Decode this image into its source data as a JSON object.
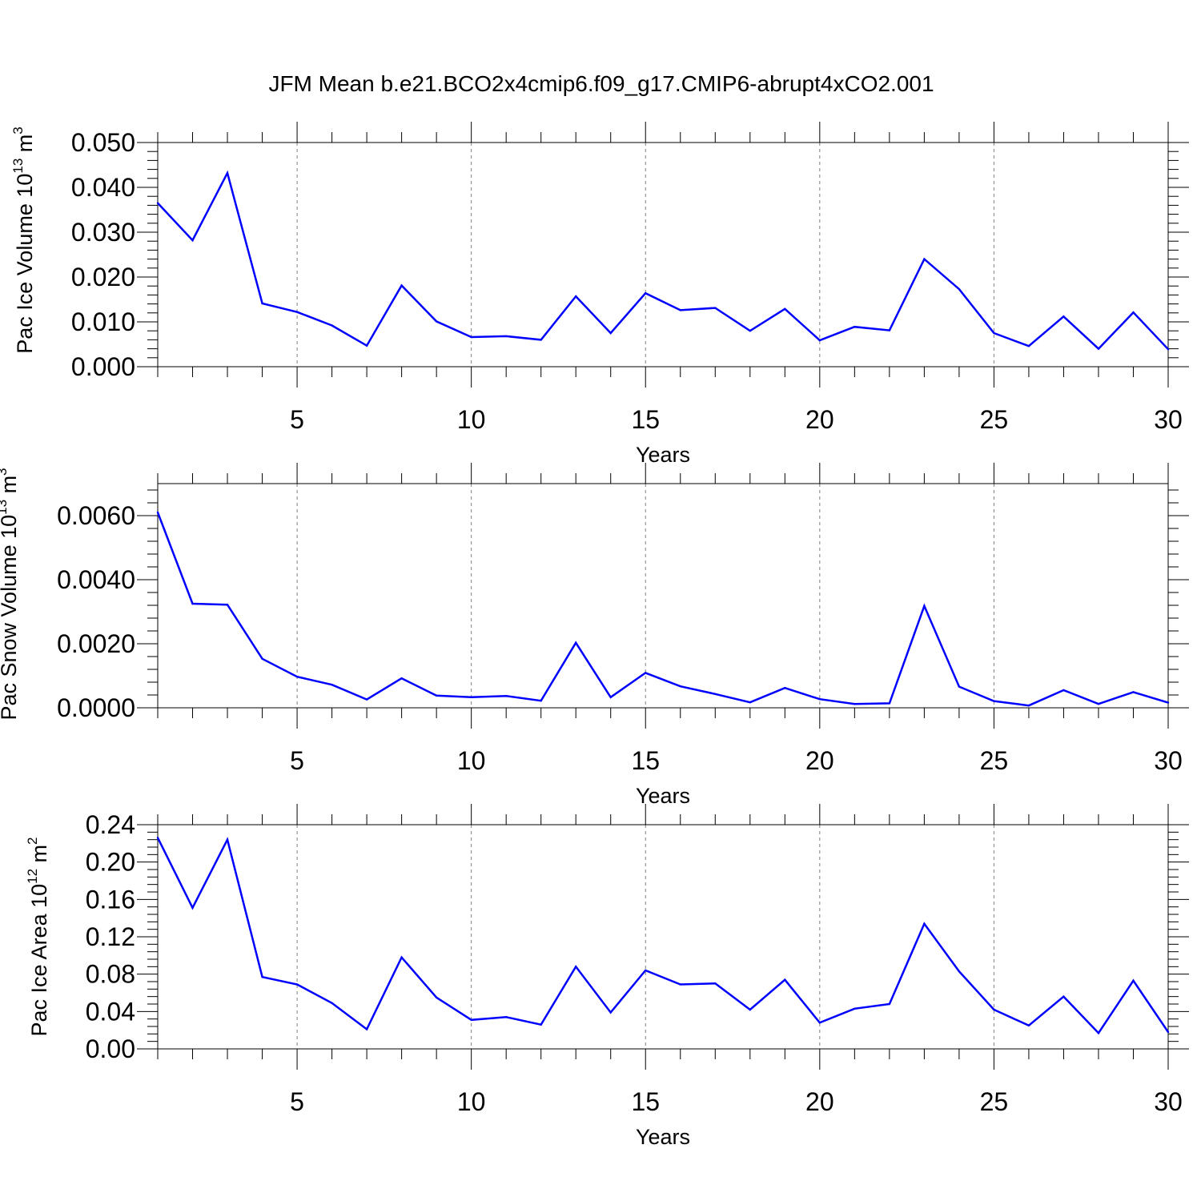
{
  "title": "JFM Mean b.e21.BCO2x4cmip6.f09_g17.CMIP6-abrupt4xCO2.001",
  "colors": {
    "series": "#0000ff",
    "axis": "#000000",
    "grid": "#7f7f7f"
  },
  "chart_data": [
    {
      "type": "line",
      "title": "JFM Mean b.e21.BCO2x4cmip6.f09_g17.CMIP6-abrupt4xCO2.001",
      "xlabel": "Years",
      "ylabel_main": "Pac Ice Volume 10",
      "ylabel_exp": "13",
      "ylabel_unit": " m",
      "ylabel_unit_exp": "3",
      "xlim": [
        1,
        30
      ],
      "ylim": [
        0,
        0.05
      ],
      "yticks": [
        0,
        0.01,
        0.02,
        0.03,
        0.04,
        0.05
      ],
      "ytick_labels": [
        "0.000",
        "0.010",
        "0.020",
        "0.030",
        "0.040",
        "0.050"
      ],
      "xticks": [
        5,
        10,
        15,
        20,
        25,
        30
      ],
      "xtick_labels": [
        "5",
        "10",
        "15",
        "20",
        "25",
        "30"
      ],
      "grid": true,
      "x": [
        1,
        2,
        3,
        4,
        5,
        6,
        7,
        8,
        9,
        10,
        11,
        12,
        13,
        14,
        15,
        16,
        17,
        18,
        19,
        20,
        21,
        22,
        23,
        24,
        25,
        26,
        27,
        28,
        29,
        30
      ],
      "values": [
        0.0365,
        0.0282,
        0.0432,
        0.0141,
        0.0122,
        0.0092,
        0.0047,
        0.0181,
        0.0101,
        0.0066,
        0.0068,
        0.006,
        0.0157,
        0.0075,
        0.0164,
        0.0126,
        0.0131,
        0.008,
        0.0129,
        0.0059,
        0.0089,
        0.0081,
        0.024,
        0.0173,
        0.0075,
        0.0046,
        0.0112,
        0.004,
        0.0121,
        0.0039
      ]
    },
    {
      "type": "line",
      "xlabel": "Years",
      "ylabel_main": "Pac Snow Volume 10",
      "ylabel_exp": "13",
      "ylabel_unit": " m",
      "ylabel_unit_exp": "3",
      "xlim": [
        1,
        30
      ],
      "ylim": [
        0,
        0.007
      ],
      "yticks": [
        0,
        0.002,
        0.004,
        0.006
      ],
      "ytick_labels": [
        "0.0000",
        "0.0020",
        "0.0040",
        "0.0060"
      ],
      "xticks": [
        5,
        10,
        15,
        20,
        25,
        30
      ],
      "xtick_labels": [
        "5",
        "10",
        "15",
        "20",
        "25",
        "30"
      ],
      "grid": true,
      "x": [
        1,
        2,
        3,
        4,
        5,
        6,
        7,
        8,
        9,
        10,
        11,
        12,
        13,
        14,
        15,
        16,
        17,
        18,
        19,
        20,
        21,
        22,
        23,
        24,
        25,
        26,
        27,
        28,
        29,
        30
      ],
      "values": [
        0.0061,
        0.00325,
        0.00322,
        0.00153,
        0.00097,
        0.00072,
        0.00026,
        0.00092,
        0.00038,
        0.00033,
        0.00037,
        0.00022,
        0.00203,
        0.00033,
        0.00109,
        0.00067,
        0.00043,
        0.00017,
        0.00062,
        0.00027,
        0.00012,
        0.00014,
        0.00318,
        0.00066,
        0.00021,
        7e-05,
        0.00055,
        0.00012,
        0.00049,
        0.00016
      ]
    },
    {
      "type": "line",
      "xlabel": "Years",
      "ylabel_main": "Pac Ice Area 10",
      "ylabel_exp": "12",
      "ylabel_unit": " m",
      "ylabel_unit_exp": "2",
      "xlim": [
        1,
        30
      ],
      "ylim": [
        0,
        0.24
      ],
      "yticks": [
        0,
        0.04,
        0.08,
        0.12,
        0.16,
        0.2,
        0.24
      ],
      "ytick_labels": [
        "0.00",
        "0.04",
        "0.08",
        "0.12",
        "0.16",
        "0.20",
        "0.24"
      ],
      "xticks": [
        5,
        10,
        15,
        20,
        25,
        30
      ],
      "xtick_labels": [
        "5",
        "10",
        "15",
        "20",
        "25",
        "30"
      ],
      "grid": true,
      "x": [
        1,
        2,
        3,
        4,
        5,
        6,
        7,
        8,
        9,
        10,
        11,
        12,
        13,
        14,
        15,
        16,
        17,
        18,
        19,
        20,
        21,
        22,
        23,
        24,
        25,
        26,
        27,
        28,
        29,
        30
      ],
      "values": [
        0.226,
        0.151,
        0.224,
        0.077,
        0.069,
        0.049,
        0.021,
        0.098,
        0.055,
        0.031,
        0.034,
        0.026,
        0.088,
        0.039,
        0.084,
        0.069,
        0.07,
        0.042,
        0.074,
        0.028,
        0.043,
        0.048,
        0.134,
        0.083,
        0.042,
        0.025,
        0.056,
        0.017,
        0.073,
        0.018
      ]
    }
  ]
}
